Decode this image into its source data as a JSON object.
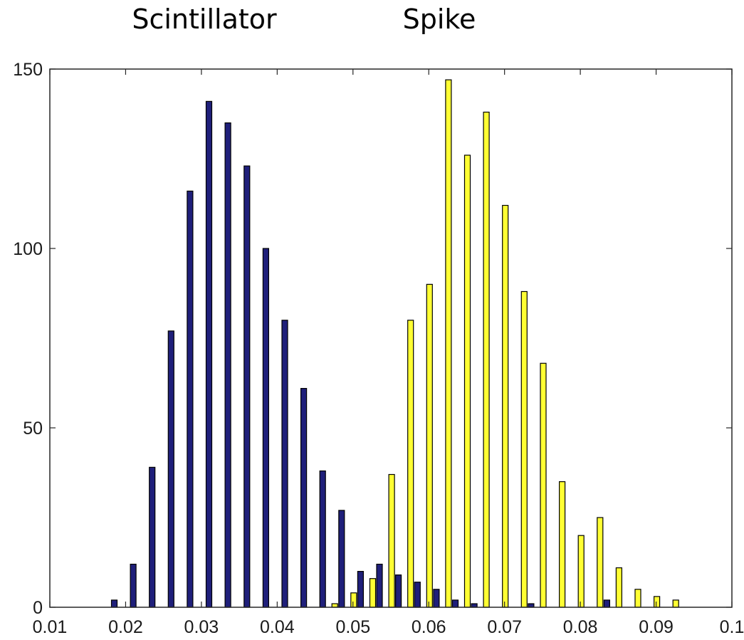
{
  "chart_data": {
    "type": "bar",
    "title": "",
    "xlabel": "",
    "ylabel": "",
    "xlim": [
      0.01,
      0.1
    ],
    "ylim": [
      0,
      150
    ],
    "grid": false,
    "x_ticks": [
      "0.01",
      "0.02",
      "0.03",
      "0.04",
      "0.05",
      "0.06",
      "0.07",
      "0.08",
      "0.09",
      "0.1"
    ],
    "y_ticks": [
      "0",
      "50",
      "100",
      "150"
    ],
    "series": [
      {
        "name": "Scintillator",
        "color": "#1f1f7a",
        "x": [
          0.0185,
          0.021,
          0.0235,
          0.026,
          0.0285,
          0.031,
          0.0335,
          0.036,
          0.0385,
          0.041,
          0.0435,
          0.046,
          0.0485,
          0.051,
          0.0535,
          0.056,
          0.0585,
          0.061,
          0.0635,
          0.066,
          0.0685,
          0.071,
          0.0735,
          0.076,
          0.0785,
          0.081,
          0.0835,
          0.086
        ],
        "values": [
          2,
          12,
          39,
          77,
          116,
          141,
          135,
          123,
          100,
          80,
          61,
          38,
          27,
          10,
          12,
          9,
          7,
          5,
          2,
          1,
          0,
          0,
          1,
          0,
          0,
          0,
          2,
          0
        ]
      },
      {
        "name": "Spike",
        "color": "#ffff33",
        "x": [
          0.0476,
          0.0501,
          0.0526,
          0.0551,
          0.0576,
          0.0601,
          0.0626,
          0.0651,
          0.0676,
          0.0701,
          0.0726,
          0.0751,
          0.0776,
          0.0801,
          0.0826,
          0.0851,
          0.0876,
          0.0901,
          0.0926
        ],
        "values": [
          1,
          4,
          8,
          37,
          80,
          90,
          147,
          126,
          138,
          112,
          88,
          68,
          35,
          20,
          25,
          11,
          5,
          3,
          2
        ]
      }
    ],
    "annotations": [
      "Scintillator",
      "Spike"
    ]
  }
}
